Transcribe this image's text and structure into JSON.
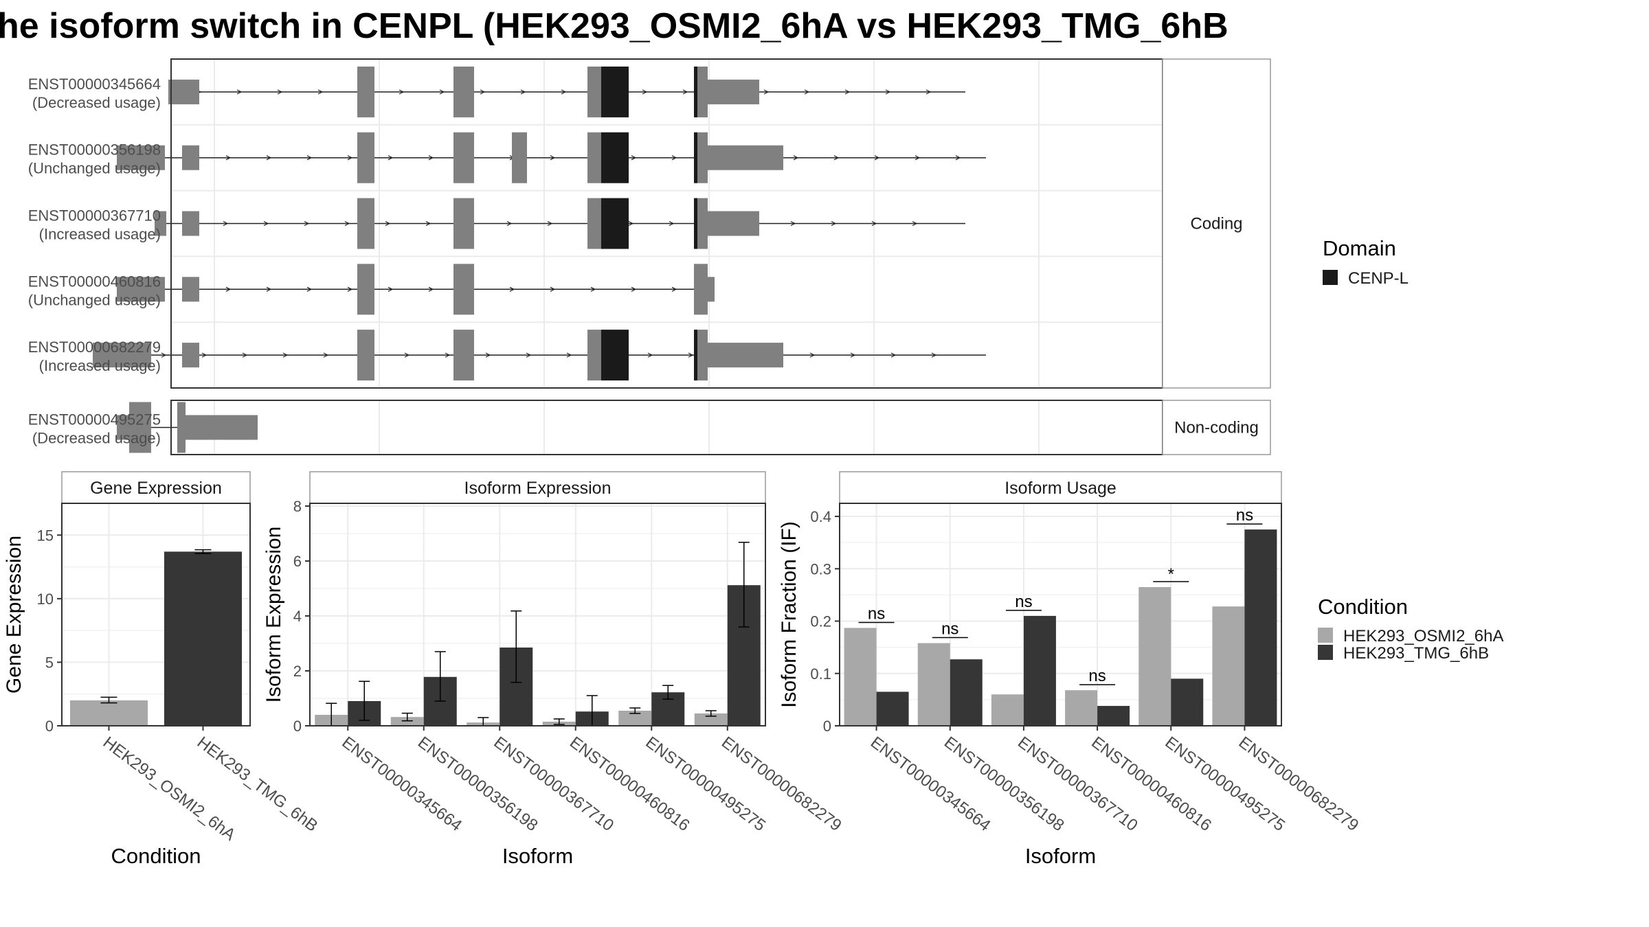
{
  "title": "he isoform switch in CENPL (HEK293_OSMI2_6hA vs HEK293_TMG_6hB",
  "colors": {
    "exon": "#808080",
    "domain": "#1a1a1a",
    "cond_a": "#a8a8a8",
    "cond_b": "#363636",
    "grid": "#ebebeb",
    "frame": "#333333"
  },
  "structure": {
    "facets": [
      {
        "label": "Coding",
        "transcripts": [
          "ENST00000345664",
          "ENST00000356198",
          "ENST00000367710",
          "ENST00000460816",
          "ENST00000682279"
        ]
      },
      {
        "label": "Non-coding",
        "transcripts": [
          "ENST00000495275"
        ]
      }
    ],
    "transcripts": [
      {
        "id": "ENST00000345664",
        "usage": "(Decreased usage)",
        "span": [
          245,
          1405
        ],
        "exons": [
          [
            245,
            290,
            "thin"
          ],
          [
            520,
            545,
            "thick"
          ],
          [
            660,
            690,
            "thick"
          ],
          [
            855,
            875,
            "thick"
          ],
          [
            875,
            915,
            "domain"
          ],
          [
            1010,
            1015,
            "domain"
          ],
          [
            1015,
            1030,
            "thick"
          ],
          [
            1030,
            1105,
            "thin"
          ]
        ]
      },
      {
        "id": "ENST00000356198",
        "usage": "(Unchanged usage)",
        "span": [
          170,
          1435
        ],
        "exons": [
          [
            170,
            240,
            "thin"
          ],
          [
            265,
            290,
            "thin"
          ],
          [
            520,
            545,
            "thick"
          ],
          [
            660,
            690,
            "thick"
          ],
          [
            745,
            767,
            "thick"
          ],
          [
            855,
            875,
            "thick"
          ],
          [
            875,
            915,
            "domain"
          ],
          [
            1010,
            1015,
            "domain"
          ],
          [
            1015,
            1030,
            "thick"
          ],
          [
            1030,
            1140,
            "thin"
          ]
        ]
      },
      {
        "id": "ENST00000367710",
        "usage": "(Increased usage)",
        "span": [
          225,
          1405
        ],
        "exons": [
          [
            225,
            242,
            "thin"
          ],
          [
            265,
            290,
            "thin"
          ],
          [
            520,
            545,
            "thick"
          ],
          [
            660,
            690,
            "thick"
          ],
          [
            855,
            875,
            "thick"
          ],
          [
            875,
            915,
            "domain"
          ],
          [
            1010,
            1015,
            "domain"
          ],
          [
            1015,
            1030,
            "thick"
          ],
          [
            1030,
            1105,
            "thin"
          ]
        ]
      },
      {
        "id": "ENST00000460816",
        "usage": "(Unchanged usage)",
        "span": [
          170,
          1040
        ],
        "exons": [
          [
            170,
            240,
            "thin"
          ],
          [
            265,
            290,
            "thin"
          ],
          [
            520,
            545,
            "thick"
          ],
          [
            660,
            690,
            "thick"
          ],
          [
            1010,
            1030,
            "thick"
          ],
          [
            1030,
            1040,
            "thin"
          ]
        ]
      },
      {
        "id": "ENST00000682279",
        "usage": "(Increased usage)",
        "span": [
          135,
          1435
        ],
        "exons": [
          [
            135,
            220,
            "thin"
          ],
          [
            265,
            290,
            "thin"
          ],
          [
            520,
            545,
            "thick"
          ],
          [
            660,
            690,
            "thick"
          ],
          [
            855,
            875,
            "thick"
          ],
          [
            875,
            915,
            "domain"
          ],
          [
            1010,
            1015,
            "domain"
          ],
          [
            1015,
            1030,
            "thick"
          ],
          [
            1030,
            1140,
            "thin"
          ]
        ]
      },
      {
        "id": "ENST00000495275",
        "usage": "(Decreased usage)",
        "span": [
          170,
          375
        ],
        "exons": [
          [
            170,
            188,
            "thin"
          ],
          [
            188,
            220,
            "thick"
          ],
          [
            258,
            270,
            "thick"
          ],
          [
            270,
            375,
            "thin"
          ]
        ]
      }
    ]
  },
  "legend_domain": {
    "title": "Domain",
    "items": [
      "CENP-L"
    ]
  },
  "legend_condition": {
    "title": "Condition",
    "items": [
      "HEK293_OSMI2_6hA",
      "HEK293_TMG_6hB"
    ]
  },
  "chart_data": [
    {
      "type": "bar",
      "title": "Gene Expression",
      "xlabel": "Condition",
      "ylabel": "Gene Expression",
      "ylim": [
        0,
        17.5
      ],
      "yticks": [
        0,
        5,
        10,
        15
      ],
      "categories": [
        "HEK293_OSMI2_6hA",
        "HEK293_TMG_6hB"
      ],
      "values": [
        2.0,
        13.7
      ],
      "errors": [
        [
          1.8,
          2.25
        ],
        [
          13.55,
          13.85
        ]
      ]
    },
    {
      "type": "bar",
      "title": "Isoform Expression",
      "xlabel": "Isoform",
      "ylabel": "Isoform Expression",
      "ylim": [
        0,
        8.1
      ],
      "yticks": [
        0,
        2,
        4,
        6,
        8
      ],
      "categories": [
        "ENST00000345664",
        "ENST00000356198",
        "ENST00000367710",
        "ENST00000460816",
        "ENST00000495275",
        "ENST00000682279"
      ],
      "series": [
        {
          "name": "HEK293_OSMI2_6hA",
          "values": [
            0.4,
            0.32,
            0.12,
            0.15,
            0.55,
            0.45
          ],
          "errors": [
            [
              0.0,
              0.82
            ],
            [
              0.18,
              0.46
            ],
            [
              0.0,
              0.3
            ],
            [
              0.05,
              0.25
            ],
            [
              0.45,
              0.65
            ],
            [
              0.35,
              0.55
            ]
          ]
        },
        {
          "name": "HEK293_TMG_6hB",
          "values": [
            0.9,
            1.78,
            2.85,
            0.52,
            1.22,
            5.12
          ],
          "errors": [
            [
              0.2,
              1.62
            ],
            [
              0.9,
              2.7
            ],
            [
              1.58,
              4.18
            ],
            [
              0.0,
              1.1
            ],
            [
              0.97,
              1.47
            ],
            [
              3.6,
              6.68
            ]
          ]
        }
      ]
    },
    {
      "type": "bar",
      "title": "Isoform Usage",
      "xlabel": "Isoform",
      "ylabel": "Isoform Fraction (IF)",
      "ylim": [
        0,
        0.425
      ],
      "yticks": [
        0.0,
        0.1,
        0.2,
        0.3,
        0.4
      ],
      "categories": [
        "ENST00000345664",
        "ENST00000356198",
        "ENST00000367710",
        "ENST00000460816",
        "ENST00000495275",
        "ENST00000682279"
      ],
      "series": [
        {
          "name": "HEK293_OSMI2_6hA",
          "values": [
            0.187,
            0.158,
            0.06,
            0.068,
            0.265,
            0.228
          ]
        },
        {
          "name": "HEK293_TMG_6hB",
          "values": [
            0.065,
            0.127,
            0.21,
            0.038,
            0.09,
            0.375
          ]
        }
      ],
      "significance": [
        "ns",
        "ns",
        "ns",
        "ns",
        "*",
        "ns"
      ]
    }
  ]
}
